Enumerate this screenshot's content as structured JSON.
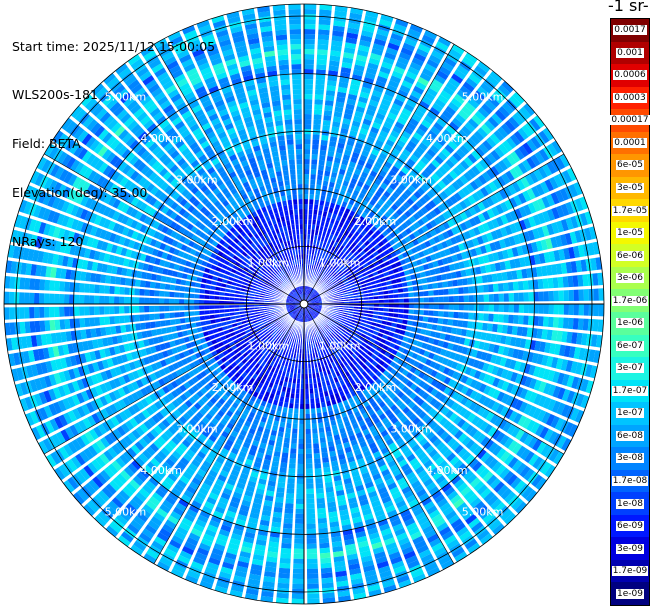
{
  "info": {
    "start_time": "Start time: 2025/11/12 15:00:05",
    "instrument": "WLS200s-181",
    "field": "Field: BETA",
    "elevation": "Elevation(deg): 35.00",
    "nrays": "NRays: 120"
  },
  "colorbar": {
    "title": "-1 sr-",
    "levels": [
      {
        "label": "0.0017",
        "color": "#7f0000"
      },
      {
        "label": "0.001",
        "color": "#b00000"
      },
      {
        "label": "0.0006",
        "color": "#e00000"
      },
      {
        "label": "0.0003",
        "color": "#ff2000"
      },
      {
        "label": "0.00017",
        "color": "#ff4a00"
      },
      {
        "label": "0.0001",
        "color": "#ff7000"
      },
      {
        "label": "6e-05",
        "color": "#ff9600"
      },
      {
        "label": "3e-05",
        "color": "#ffb800"
      },
      {
        "label": "1.7e-05",
        "color": "#ffd800"
      },
      {
        "label": "1e-05",
        "color": "#f4f800"
      },
      {
        "label": "6e-06",
        "color": "#d2ff25"
      },
      {
        "label": "3e-06",
        "color": "#aaff4d"
      },
      {
        "label": "1.7e-06",
        "color": "#82ff74"
      },
      {
        "label": "1e-06",
        "color": "#5aff9c"
      },
      {
        "label": "6e-07",
        "color": "#37ffc0"
      },
      {
        "label": "3e-07",
        "color": "#1cf4e3"
      },
      {
        "label": "1.7e-07",
        "color": "#00e4f8"
      },
      {
        "label": "1e-07",
        "color": "#00c4ff"
      },
      {
        "label": "6e-08",
        "color": "#00a4ff"
      },
      {
        "label": "3e-08",
        "color": "#0084ff"
      },
      {
        "label": "1.7e-08",
        "color": "#0064ff"
      },
      {
        "label": "1e-08",
        "color": "#0040ff"
      },
      {
        "label": "6e-09",
        "color": "#0018ff"
      },
      {
        "label": "3e-09",
        "color": "#0000e0"
      },
      {
        "label": "1.7e-09",
        "color": "#0000b0"
      },
      {
        "label": "1e-09",
        "color": "#000080"
      }
    ]
  },
  "range_labels": [
    {
      "label": "1.00km",
      "range_km": 1
    },
    {
      "label": "2.00km",
      "range_km": 2
    },
    {
      "label": "3.00km",
      "range_km": 3
    },
    {
      "label": "4.00km",
      "range_km": 4
    },
    {
      "label": "5.00km",
      "range_km": 5
    }
  ],
  "ppi": {
    "nrays": 120,
    "max_range_km": 5,
    "ring_level_index": 10
  }
}
